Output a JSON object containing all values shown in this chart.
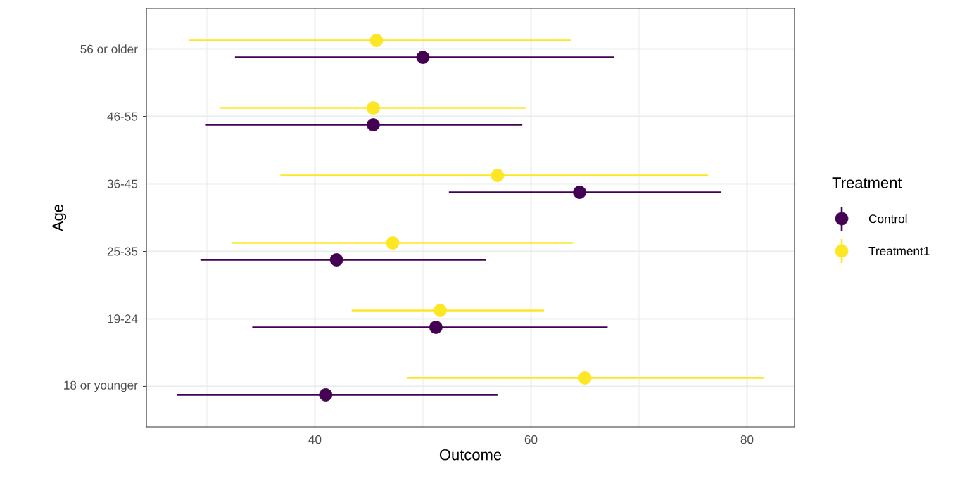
{
  "chart_data": {
    "type": "scatter",
    "orientation": "horizontal",
    "xlabel": "Outcome",
    "ylabel": "Age",
    "legend_title": "Treatment",
    "categories": [
      "56 or older",
      "46-55",
      "36-45",
      "25-35",
      "19-24",
      "18 or younger"
    ],
    "series": [
      {
        "name": "Control",
        "color": "#440154",
        "values": [
          50.0,
          45.4,
          64.5,
          42.0,
          51.2,
          41.0
        ],
        "errors": [
          [
            32.6,
            67.7
          ],
          [
            29.9,
            59.2
          ],
          [
            52.4,
            77.6
          ],
          [
            29.4,
            55.8
          ],
          [
            34.2,
            67.1
          ],
          [
            27.2,
            56.9
          ]
        ]
      },
      {
        "name": "Treatment1",
        "color": "#fde725",
        "values": [
          45.7,
          45.4,
          56.9,
          47.2,
          51.6,
          65.0
        ],
        "errors": [
          [
            28.3,
            63.7
          ],
          [
            31.2,
            59.5
          ],
          [
            36.8,
            76.4
          ],
          [
            32.3,
            63.9
          ],
          [
            43.4,
            61.2
          ],
          [
            48.5,
            81.6
          ]
        ]
      }
    ],
    "xlim": [
      24.4,
      84.4
    ],
    "xticks": [
      40,
      60,
      80
    ],
    "grid": true,
    "legend": "right",
    "marker": "circle"
  }
}
